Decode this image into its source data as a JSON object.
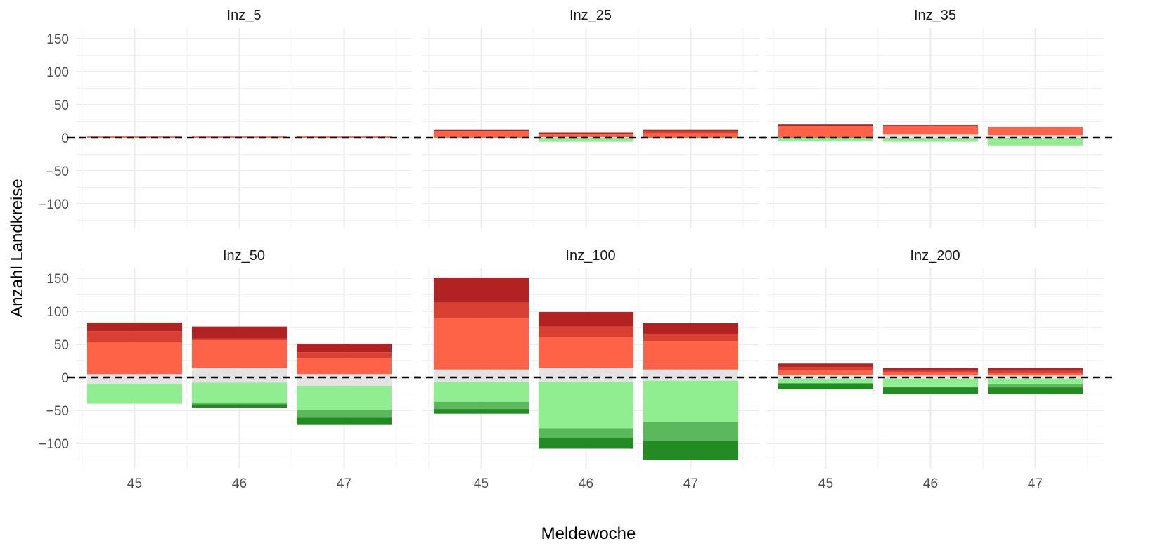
{
  "chart_data": {
    "type": "bar",
    "stacked": true,
    "diverging": true,
    "xlabel": "Meldewoche",
    "ylabel": "Anzahl Landkreise",
    "x_categories": [
      "45",
      "46",
      "47"
    ],
    "y_ticks": [
      150,
      100,
      50,
      0,
      -50,
      -100
    ],
    "y_tick_labels": [
      "150",
      "100",
      "50",
      "0",
      "−50",
      "−100"
    ],
    "ylim": [
      -125,
      162
    ],
    "grid": true,
    "reference_line": {
      "y": 0,
      "style": "dashed"
    },
    "segment_colors": {
      "dark_red": "#b22222",
      "mid_red": "#d94032",
      "light_red": "#ff6347",
      "neutral": "#e3e3e3",
      "light_green": "#90ee90",
      "mid_green": "#5cb85c",
      "dark_green": "#228b22"
    },
    "panels": [
      {
        "name": "Inz_5",
        "bars": [
          {
            "week": "45",
            "segments": [
              {
                "color": "light_red",
                "y0": 0,
                "y1": 2
              },
              {
                "color": "light_green",
                "y0": -1,
                "y1": 0
              }
            ]
          },
          {
            "week": "46",
            "segments": [
              {
                "color": "light_red",
                "y0": 0,
                "y1": 2
              },
              {
                "color": "light_green",
                "y0": -1,
                "y1": 0
              }
            ]
          },
          {
            "week": "47",
            "segments": [
              {
                "color": "light_red",
                "y0": 0,
                "y1": 2
              },
              {
                "color": "light_green",
                "y0": -1,
                "y1": 0
              }
            ]
          }
        ]
      },
      {
        "name": "Inz_25",
        "bars": [
          {
            "week": "45",
            "segments": [
              {
                "color": "light_red",
                "y0": 0,
                "y1": 10
              },
              {
                "color": "dark_red",
                "y0": 10,
                "y1": 12
              },
              {
                "color": "light_green",
                "y0": -1,
                "y1": 0
              }
            ]
          },
          {
            "week": "46",
            "segments": [
              {
                "color": "light_red",
                "y0": 1,
                "y1": 6
              },
              {
                "color": "dark_red",
                "y0": 6,
                "y1": 8
              },
              {
                "color": "neutral",
                "y0": -1,
                "y1": 1
              },
              {
                "color": "light_green",
                "y0": -6,
                "y1": -1
              }
            ]
          },
          {
            "week": "47",
            "segments": [
              {
                "color": "light_red",
                "y0": 0,
                "y1": 7
              },
              {
                "color": "mid_red",
                "y0": 7,
                "y1": 10
              },
              {
                "color": "dark_red",
                "y0": 10,
                "y1": 12
              },
              {
                "color": "light_green",
                "y0": -1,
                "y1": 0
              }
            ]
          }
        ]
      },
      {
        "name": "Inz_35",
        "bars": [
          {
            "week": "45",
            "segments": [
              {
                "color": "light_red",
                "y0": 0,
                "y1": 18
              },
              {
                "color": "dark_red",
                "y0": 18,
                "y1": 20
              },
              {
                "color": "light_green",
                "y0": -5,
                "y1": 0
              }
            ]
          },
          {
            "week": "46",
            "segments": [
              {
                "color": "neutral",
                "y0": -1,
                "y1": 5
              },
              {
                "color": "light_red",
                "y0": 5,
                "y1": 17
              },
              {
                "color": "dark_red",
                "y0": 17,
                "y1": 19
              },
              {
                "color": "light_green",
                "y0": -6,
                "y1": -1
              }
            ]
          },
          {
            "week": "47",
            "segments": [
              {
                "color": "neutral",
                "y0": -1,
                "y1": 4
              },
              {
                "color": "light_red",
                "y0": 4,
                "y1": 16
              },
              {
                "color": "light_green",
                "y0": -11,
                "y1": -1
              },
              {
                "color": "dark_green",
                "y0": -12,
                "y1": -11
              }
            ]
          }
        ]
      },
      {
        "name": "Inz_50",
        "bars": [
          {
            "week": "45",
            "segments": [
              {
                "color": "neutral",
                "y0": -10,
                "y1": 5
              },
              {
                "color": "light_red",
                "y0": 5,
                "y1": 54
              },
              {
                "color": "mid_red",
                "y0": 54,
                "y1": 70
              },
              {
                "color": "dark_red",
                "y0": 70,
                "y1": 83
              },
              {
                "color": "light_green",
                "y0": -40,
                "y1": -10
              }
            ]
          },
          {
            "week": "46",
            "segments": [
              {
                "color": "neutral",
                "y0": -8,
                "y1": 14
              },
              {
                "color": "light_red",
                "y0": 14,
                "y1": 56
              },
              {
                "color": "mid_red",
                "y0": 56,
                "y1": 59
              },
              {
                "color": "dark_red",
                "y0": 59,
                "y1": 77
              },
              {
                "color": "light_green",
                "y0": -38,
                "y1": -8
              },
              {
                "color": "mid_green",
                "y0": -41,
                "y1": -38
              },
              {
                "color": "dark_green",
                "y0": -46,
                "y1": -41
              }
            ]
          },
          {
            "week": "47",
            "segments": [
              {
                "color": "neutral",
                "y0": -13,
                "y1": 5
              },
              {
                "color": "light_red",
                "y0": 5,
                "y1": 29
              },
              {
                "color": "mid_red",
                "y0": 29,
                "y1": 38
              },
              {
                "color": "dark_red",
                "y0": 38,
                "y1": 51
              },
              {
                "color": "light_green",
                "y0": -49,
                "y1": -13
              },
              {
                "color": "mid_green",
                "y0": -61,
                "y1": -49
              },
              {
                "color": "dark_green",
                "y0": -72,
                "y1": -61
              }
            ]
          }
        ]
      },
      {
        "name": "Inz_100",
        "bars": [
          {
            "week": "45",
            "segments": [
              {
                "color": "neutral",
                "y0": -7,
                "y1": 12
              },
              {
                "color": "light_red",
                "y0": 12,
                "y1": 89
              },
              {
                "color": "mid_red",
                "y0": 89,
                "y1": 113
              },
              {
                "color": "dark_red",
                "y0": 113,
                "y1": 151
              },
              {
                "color": "light_green",
                "y0": -37,
                "y1": -7
              },
              {
                "color": "mid_green",
                "y0": -48,
                "y1": -37
              },
              {
                "color": "dark_green",
                "y0": -55,
                "y1": -48
              }
            ]
          },
          {
            "week": "46",
            "segments": [
              {
                "color": "neutral",
                "y0": -7,
                "y1": 14
              },
              {
                "color": "light_red",
                "y0": 14,
                "y1": 61
              },
              {
                "color": "mid_red",
                "y0": 61,
                "y1": 77
              },
              {
                "color": "dark_red",
                "y0": 77,
                "y1": 99
              },
              {
                "color": "light_green",
                "y0": -77,
                "y1": -7
              },
              {
                "color": "mid_green",
                "y0": -92,
                "y1": -77
              },
              {
                "color": "dark_green",
                "y0": -108,
                "y1": -92
              }
            ]
          },
          {
            "week": "47",
            "segments": [
              {
                "color": "neutral",
                "y0": -5,
                "y1": 12
              },
              {
                "color": "light_red",
                "y0": 12,
                "y1": 55
              },
              {
                "color": "mid_red",
                "y0": 55,
                "y1": 66
              },
              {
                "color": "dark_red",
                "y0": 66,
                "y1": 82
              },
              {
                "color": "light_green",
                "y0": -67,
                "y1": -5
              },
              {
                "color": "mid_green",
                "y0": -96,
                "y1": -67
              },
              {
                "color": "dark_green",
                "y0": -125,
                "y1": -96
              }
            ]
          }
        ]
      },
      {
        "name": "Inz_200",
        "bars": [
          {
            "week": "45",
            "segments": [
              {
                "color": "neutral",
                "y0": -3,
                "y1": 4
              },
              {
                "color": "light_red",
                "y0": 4,
                "y1": 11
              },
              {
                "color": "mid_red",
                "y0": 11,
                "y1": 16
              },
              {
                "color": "dark_red",
                "y0": 16,
                "y1": 21
              },
              {
                "color": "light_green",
                "y0": -9,
                "y1": -3
              },
              {
                "color": "dark_green",
                "y0": -18,
                "y1": -9
              }
            ]
          },
          {
            "week": "46",
            "segments": [
              {
                "color": "neutral",
                "y0": -2,
                "y1": 3
              },
              {
                "color": "light_red",
                "y0": 3,
                "y1": 7
              },
              {
                "color": "mid_red",
                "y0": 7,
                "y1": 10
              },
              {
                "color": "dark_red",
                "y0": 10,
                "y1": 14
              },
              {
                "color": "light_green",
                "y0": -15,
                "y1": -2
              },
              {
                "color": "dark_green",
                "y0": -25,
                "y1": -15
              }
            ]
          },
          {
            "week": "47",
            "segments": [
              {
                "color": "neutral",
                "y0": -2,
                "y1": 3
              },
              {
                "color": "light_red",
                "y0": 3,
                "y1": 6
              },
              {
                "color": "mid_red",
                "y0": 6,
                "y1": 10
              },
              {
                "color": "dark_red",
                "y0": 10,
                "y1": 14
              },
              {
                "color": "light_green",
                "y0": -10,
                "y1": -2
              },
              {
                "color": "mid_green",
                "y0": -15,
                "y1": -10
              },
              {
                "color": "dark_green",
                "y0": -25,
                "y1": -15
              }
            ]
          }
        ]
      }
    ]
  }
}
